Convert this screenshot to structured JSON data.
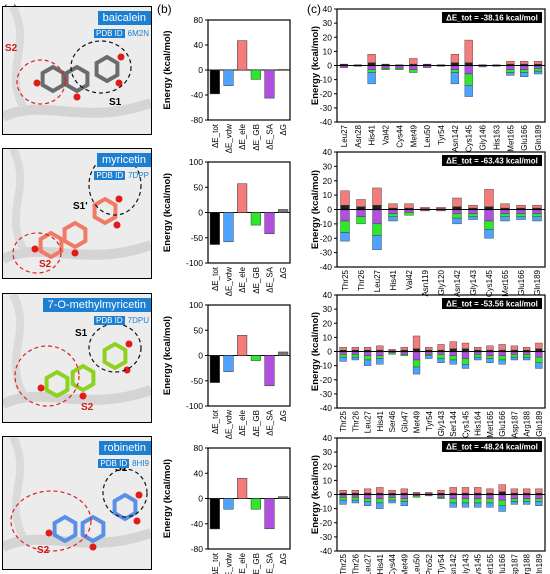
{
  "panel_letters": {
    "a": "(a)",
    "b": "(b)",
    "c": "(c)"
  },
  "molecules": [
    {
      "name": "baicalein",
      "pdb_label": "PDB ID",
      "pdb_code": "6M2N",
      "site_left": "S2",
      "site_right": "S1",
      "color": "#6b6b6b"
    },
    {
      "name": "myricetin",
      "pdb_label": "PDB ID",
      "pdb_code": "7DPP",
      "site_left": "S2",
      "site_right": "S1'",
      "color": "#f07a66"
    },
    {
      "name": "7-O-methylmyricetin",
      "pdb_label": "PDB ID",
      "pdb_code": "7DPU",
      "site_left": "S2",
      "site_right": "S1",
      "color": "#8fd11f"
    },
    {
      "name": "robinetin",
      "pdb_label": "PDB ID",
      "pdb_code": "8HI9",
      "site_left": "S2",
      "site_right": "S1'",
      "color": "#5a8fe8"
    }
  ],
  "energy_axis_label": "Energy (kcal/mol)",
  "term_colors": {
    "total": "#000000",
    "vdw": "#4da3ff",
    "ele": "#f47c7c",
    "gb": "#2ee82e",
    "sa": "#b04fe0",
    "other": "#777777"
  },
  "chart_data": [
    {
      "type": "bar",
      "panel": "b",
      "molecule": "baicalein",
      "categories": [
        "ΔE_tot",
        "ΔE_vdw",
        "ΔE_ele",
        "ΔE_GB",
        "ΔE_SA",
        "ΔG"
      ],
      "values": [
        -38.2,
        -25,
        47,
        -15,
        -45,
        1
      ],
      "ylim": [
        -80,
        80
      ],
      "yticks": [
        -80,
        -40,
        0,
        40,
        80
      ]
    },
    {
      "type": "bar",
      "panel": "b",
      "molecule": "myricetin",
      "categories": [
        "ΔE_tot",
        "ΔE_vdw",
        "ΔE_ele",
        "ΔE_GB",
        "ΔE_SA",
        "ΔG"
      ],
      "values": [
        -63.4,
        -58,
        57,
        -25,
        -42,
        6
      ],
      "ylim": [
        -100,
        100
      ],
      "yticks": [
        -100,
        -50,
        0,
        50,
        100
      ]
    },
    {
      "type": "bar",
      "panel": "b",
      "molecule": "7-O-methylmyricetin",
      "categories": [
        "ΔE_tot",
        "ΔE_vdw",
        "ΔE_ele",
        "ΔE_GB",
        "ΔE_SA",
        "ΔG"
      ],
      "values": [
        -53.6,
        -32,
        40,
        -10,
        -60,
        7
      ],
      "ylim": [
        -100,
        100
      ],
      "yticks": [
        -100,
        -50,
        0,
        50,
        100
      ]
    },
    {
      "type": "bar",
      "panel": "b",
      "molecule": "robinetin",
      "categories": [
        "ΔE_tot",
        "ΔE_vdw",
        "ΔE_ele",
        "ΔE_GB",
        "ΔE_SA",
        "ΔG"
      ],
      "values": [
        -48.2,
        -17,
        32,
        -17,
        -48,
        3
      ],
      "ylim": [
        -80,
        80
      ],
      "yticks": [
        -80,
        -40,
        0,
        40,
        80
      ]
    },
    {
      "type": "bar",
      "panel": "c",
      "molecule": "baicalein",
      "total_label": "ΔE_tot = -38.16 kcal/mol",
      "ylim": [
        -40,
        40
      ],
      "yticks": [
        -40,
        -30,
        -20,
        -10,
        0,
        10,
        20,
        30,
        40
      ],
      "categories": [
        "Leu27",
        "Asn28",
        "His41",
        "Val42",
        "Cys44",
        "Met49",
        "Leu50",
        "Tyr54",
        "Asn142",
        "Cys145",
        "Gly146",
        "His163",
        "Met165",
        "Glu166",
        "Gln189"
      ],
      "residues": [
        {
          "pos": [
            1,
            0,
            0
          ],
          "neg": [
            -1.5,
            0,
            0
          ]
        },
        {
          "pos": [
            0.5,
            0,
            0
          ],
          "neg": [
            -0.5,
            0,
            0
          ]
        },
        {
          "pos": [
            2,
            6,
            0
          ],
          "neg": [
            -3,
            -2,
            -8
          ]
        },
        {
          "pos": [
            1,
            0,
            0
          ],
          "neg": [
            -2,
            -1,
            0
          ]
        },
        {
          "pos": [
            0.5,
            0,
            0
          ],
          "neg": [
            -2,
            -1,
            0
          ]
        },
        {
          "pos": [
            1,
            4,
            0
          ],
          "neg": [
            -3,
            -2,
            0
          ]
        },
        {
          "pos": [
            1,
            0,
            0
          ],
          "neg": [
            -1.5,
            0,
            0
          ]
        },
        {
          "pos": [
            0.5,
            0,
            0
          ],
          "neg": [
            -0.5,
            0,
            0
          ]
        },
        {
          "pos": [
            2,
            6,
            0
          ],
          "neg": [
            -3,
            -2,
            -8
          ]
        },
        {
          "pos": [
            2,
            16,
            0
          ],
          "neg": [
            -6,
            -8,
            -8
          ]
        },
        {
          "pos": [
            0.5,
            0,
            0
          ],
          "neg": [
            -1,
            0,
            0
          ]
        },
        {
          "pos": [
            0.5,
            0,
            0
          ],
          "neg": [
            -0.5,
            0,
            0
          ]
        },
        {
          "pos": [
            1,
            2,
            0
          ],
          "neg": [
            -3,
            -2,
            -2
          ]
        },
        {
          "pos": [
            1,
            2,
            0
          ],
          "neg": [
            -3,
            -2,
            -3
          ]
        },
        {
          "pos": [
            1,
            2,
            0
          ],
          "neg": [
            -2,
            -2,
            -2
          ]
        }
      ]
    },
    {
      "type": "bar",
      "panel": "c",
      "molecule": "myricetin",
      "total_label": "ΔE_tot = -63.43 kcal/mol",
      "ylim": [
        -40,
        40
      ],
      "yticks": [
        -40,
        -30,
        -20,
        -10,
        0,
        10,
        20,
        30,
        40
      ],
      "categories": [
        "Thr25",
        "Thr26",
        "Leu27",
        "His41",
        "Val42",
        "Asn119",
        "Gly120",
        "Asn142",
        "Gly143",
        "Cys145",
        "Met165",
        "Glu166",
        "Gln189"
      ],
      "residues": [
        {
          "pos": [
            3,
            10,
            0
          ],
          "neg": [
            -8,
            -8,
            -6
          ]
        },
        {
          "pos": [
            2,
            5,
            0
          ],
          "neg": [
            -5,
            -5,
            0
          ]
        },
        {
          "pos": [
            3,
            12,
            0
          ],
          "neg": [
            -10,
            -8,
            -10
          ]
        },
        {
          "pos": [
            1,
            3,
            0
          ],
          "neg": [
            -3,
            -2,
            -3
          ]
        },
        {
          "pos": [
            1,
            3,
            0
          ],
          "neg": [
            -2,
            -2,
            0
          ]
        },
        {
          "pos": [
            0.5,
            1,
            0
          ],
          "neg": [
            -1,
            0,
            0
          ]
        },
        {
          "pos": [
            0.5,
            1,
            0
          ],
          "neg": [
            -1,
            0,
            0
          ]
        },
        {
          "pos": [
            2,
            6,
            0
          ],
          "neg": [
            -3,
            -3,
            -4
          ]
        },
        {
          "pos": [
            1,
            2,
            0
          ],
          "neg": [
            -3,
            -2,
            -2
          ]
        },
        {
          "pos": [
            2,
            12,
            0
          ],
          "neg": [
            -8,
            -6,
            -6
          ]
        },
        {
          "pos": [
            1,
            3,
            0
          ],
          "neg": [
            -3,
            -2,
            -3
          ]
        },
        {
          "pos": [
            1,
            2,
            0
          ],
          "neg": [
            -3,
            -2,
            -2
          ]
        },
        {
          "pos": [
            1,
            2,
            0
          ],
          "neg": [
            -3,
            -2,
            -3
          ]
        }
      ]
    },
    {
      "type": "bar",
      "panel": "c",
      "molecule": "7-O-methylmyricetin",
      "total_label": "ΔE_tot = -53.56 kcal/mol",
      "ylim": [
        -40,
        40
      ],
      "yticks": [
        -40,
        -30,
        -20,
        -10,
        0,
        10,
        20,
        30,
        40
      ],
      "categories": [
        "Thr25",
        "Thr26",
        "Leu27",
        "His41",
        "Ser46",
        "Glu47",
        "Met49",
        "Tyr54",
        "Gly143",
        "Ser144",
        "Cys145",
        "His164",
        "Met165",
        "Glu166",
        "Asp187",
        "Arg188",
        "Gln189"
      ],
      "residues": [
        {
          "pos": [
            1,
            2,
            0
          ],
          "neg": [
            -2,
            -2,
            -3
          ]
        },
        {
          "pos": [
            1,
            2,
            0
          ],
          "neg": [
            -2,
            -2,
            -2
          ]
        },
        {
          "pos": [
            1,
            2,
            0
          ],
          "neg": [
            -3,
            -3,
            -4
          ]
        },
        {
          "pos": [
            1,
            3,
            0
          ],
          "neg": [
            -3,
            -2,
            -4
          ]
        },
        {
          "pos": [
            0.5,
            1,
            0
          ],
          "neg": [
            -1,
            -1,
            0
          ]
        },
        {
          "pos": [
            1,
            2,
            0
          ],
          "neg": [
            -2,
            -1,
            0
          ]
        },
        {
          "pos": [
            2,
            9,
            0
          ],
          "neg": [
            -6,
            -5,
            -5
          ]
        },
        {
          "pos": [
            1,
            2,
            0
          ],
          "neg": [
            -2,
            -1,
            -2
          ]
        },
        {
          "pos": [
            1,
            4,
            0
          ],
          "neg": [
            -2,
            -3,
            -3
          ]
        },
        {
          "pos": [
            2,
            5,
            0
          ],
          "neg": [
            -3,
            -3,
            -3
          ]
        },
        {
          "pos": [
            2,
            4,
            0
          ],
          "neg": [
            -5,
            -4,
            -3
          ]
        },
        {
          "pos": [
            1,
            2,
            0
          ],
          "neg": [
            -2,
            -2,
            -2
          ]
        },
        {
          "pos": [
            1,
            3,
            0
          ],
          "neg": [
            -3,
            -2,
            -3
          ]
        },
        {
          "pos": [
            1,
            4,
            0
          ],
          "neg": [
            -3,
            -3,
            -3
          ]
        },
        {
          "pos": [
            1,
            3,
            0
          ],
          "neg": [
            -2,
            -2,
            -2
          ]
        },
        {
          "pos": [
            1,
            2,
            0
          ],
          "neg": [
            -2,
            -2,
            -2
          ]
        },
        {
          "pos": [
            2,
            4,
            0
          ],
          "neg": [
            -4,
            -4,
            -4
          ]
        }
      ]
    },
    {
      "type": "bar",
      "panel": "c",
      "molecule": "robinetin",
      "total_label": "ΔE_tot = -48.24 kcal/mol",
      "ylim": [
        -40,
        40
      ],
      "yticks": [
        -40,
        -30,
        -20,
        -10,
        0,
        10,
        20,
        30,
        40
      ],
      "categories": [
        "Thr25",
        "Thr26",
        "Leu27",
        "His41",
        "Cys44",
        "Met49",
        "Leu50",
        "Pro52",
        "Tyr54",
        "Asn142",
        "Gly143",
        "Cys145",
        "Met165",
        "Glu166",
        "Asp187",
        "Arg188",
        "Gln189"
      ],
      "residues": [
        {
          "pos": [
            1,
            2,
            0
          ],
          "neg": [
            -2,
            -2,
            -3
          ]
        },
        {
          "pos": [
            1,
            2,
            0
          ],
          "neg": [
            -2,
            -2,
            -2
          ]
        },
        {
          "pos": [
            1,
            3,
            0
          ],
          "neg": [
            -3,
            -2,
            -3
          ]
        },
        {
          "pos": [
            1,
            4,
            0
          ],
          "neg": [
            -3,
            -3,
            -4
          ]
        },
        {
          "pos": [
            1,
            2,
            0
          ],
          "neg": [
            -2,
            -2,
            -2
          ]
        },
        {
          "pos": [
            1,
            3,
            0
          ],
          "neg": [
            -3,
            -2,
            -3
          ]
        },
        {
          "pos": [
            0.5,
            1,
            0
          ],
          "neg": [
            -1,
            -1,
            0
          ]
        },
        {
          "pos": [
            0.5,
            1,
            0
          ],
          "neg": [
            -1,
            0,
            0
          ]
        },
        {
          "pos": [
            1,
            2,
            0
          ],
          "neg": [
            -2,
            -1,
            0
          ]
        },
        {
          "pos": [
            1,
            4,
            0
          ],
          "neg": [
            -3,
            -3,
            -3
          ]
        },
        {
          "pos": [
            1,
            4,
            0
          ],
          "neg": [
            -3,
            -3,
            -3
          ]
        },
        {
          "pos": [
            1,
            4,
            0
          ],
          "neg": [
            -3,
            -3,
            -3
          ]
        },
        {
          "pos": [
            1,
            3,
            0
          ],
          "neg": [
            -3,
            -3,
            -3
          ]
        },
        {
          "pos": [
            2,
            5,
            0
          ],
          "neg": [
            -4,
            -4,
            -4
          ]
        },
        {
          "pos": [
            1,
            3,
            0
          ],
          "neg": [
            -3,
            -2,
            -2
          ]
        },
        {
          "pos": [
            1,
            3,
            0
          ],
          "neg": [
            -3,
            -2,
            -2
          ]
        },
        {
          "pos": [
            1,
            3,
            0
          ],
          "neg": [
            -3,
            -2,
            -3
          ]
        }
      ]
    }
  ]
}
